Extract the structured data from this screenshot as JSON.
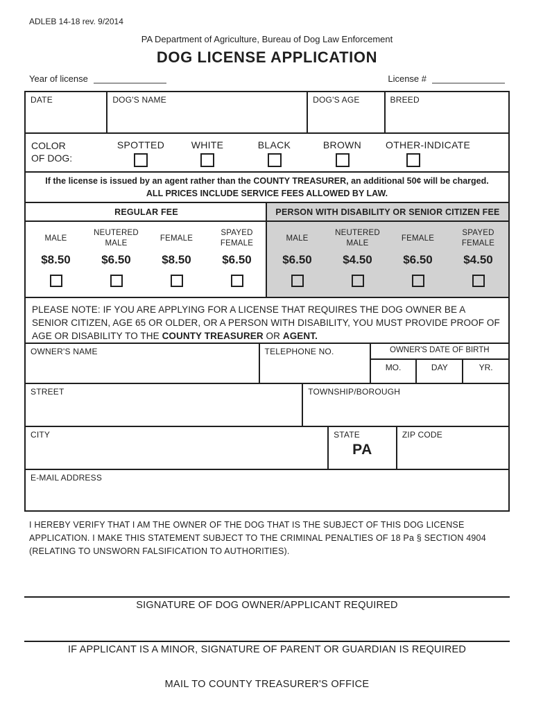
{
  "header": {
    "form_code": "ADLEB 14-18 rev. 9/2014",
    "department": "PA Department of Agriculture, Bureau of Dog Law Enforcement",
    "title": "DOG LICENSE APPLICATION",
    "year_of_license_label": "Year of license",
    "license_number_label": "License #",
    "year_of_license_value": "",
    "license_number_value": ""
  },
  "dog_info": {
    "date_label": "DATE",
    "name_label": "DOG'S NAME",
    "age_label": "DOG'S AGE",
    "breed_label": "BREED"
  },
  "color_of_dog": {
    "label_line1": "COLOR",
    "label_line2": "OF DOG:",
    "options": [
      {
        "label": "SPOTTED",
        "checked": false
      },
      {
        "label": "WHITE",
        "checked": false
      },
      {
        "label": "BLACK",
        "checked": false
      },
      {
        "label": "BROWN",
        "checked": false
      },
      {
        "label": "OTHER-INDICATE",
        "checked": false
      }
    ]
  },
  "agent_notice": {
    "line1": "If the license is issued by an agent rather than the COUNTY TREASURER, an additional 50¢ will be charged.",
    "line2": "ALL PRICES INCLUDE SERVICE FEES ALLOWED BY LAW."
  },
  "fees": {
    "regular": {
      "header": "REGULAR FEE",
      "items": [
        {
          "label": "MALE",
          "price": "$8.50",
          "checked": false
        },
        {
          "label": "NEUTERED MALE",
          "price": "$6.50",
          "checked": false
        },
        {
          "label": "FEMALE",
          "price": "$8.50",
          "checked": false
        },
        {
          "label": "SPAYED FEMALE",
          "price": "$6.50",
          "checked": false
        }
      ]
    },
    "disability": {
      "header": "PERSON WITH DISABILITY OR SENIOR CITIZEN FEE",
      "items": [
        {
          "label": "MALE",
          "price": "$6.50",
          "checked": false
        },
        {
          "label": "NEUTERED MALE",
          "price": "$4.50",
          "checked": false
        },
        {
          "label": "FEMALE",
          "price": "$6.50",
          "checked": false
        },
        {
          "label": "SPAYED FEMALE",
          "price": "$4.50",
          "checked": false
        }
      ]
    }
  },
  "please_note": {
    "text_before": "PLEASE NOTE: IF YOU ARE APPLYING FOR A LICENSE THAT REQUIRES THE DOG OWNER BE A SENIOR CITIZEN, AGE 65 OR OLDER, OR A PERSON WITH DISABILITY, YOU MUST PROVIDE PROOF OF AGE OR DISABILITY TO THE ",
    "bold_1": "COUNTY TREASURER",
    "text_middle": " OR ",
    "bold_2": "AGENT."
  },
  "owner_info": {
    "name_label": "OWNER'S NAME",
    "telephone_label": "TELEPHONE NO.",
    "dob_label": "OWNER'S DATE OF BIRTH",
    "dob_month_label": "MO.",
    "dob_day_label": "DAY",
    "dob_year_label": "YR.",
    "street_label": "STREET",
    "township_label": "TOWNSHIP/BOROUGH",
    "city_label": "CITY",
    "state_label": "STATE",
    "state_value": "PA",
    "zip_label": "ZIP CODE",
    "email_label": "E-MAIL ADDRESS"
  },
  "verification_statement": "I HEREBY VERIFY THAT I AM THE OWNER OF THE DOG THAT IS THE SUBJECT OF THIS DOG LICENSE APPLICATION. I MAKE THIS STATEMENT SUBJECT TO THE CRIMINAL PENALTIES OF 18 Pa § SECTION 4904 (RELATING TO UNSWORN FALSIFICATION TO AUTHORITIES).",
  "signatures": {
    "owner_caption": "SIGNATURE OF DOG OWNER/APPLICANT REQUIRED",
    "minor_caption": "IF APPLICANT IS A MINOR, SIGNATURE OF PARENT OR GUARDIAN IS REQUIRED"
  },
  "footer": {
    "mail_to": "MAIL TO COUNTY TREASURER'S OFFICE"
  },
  "colors": {
    "border": "#1f1f1f",
    "disability_section_bg": "#d2d2d2",
    "blank_underline": "#9a9a9a"
  }
}
